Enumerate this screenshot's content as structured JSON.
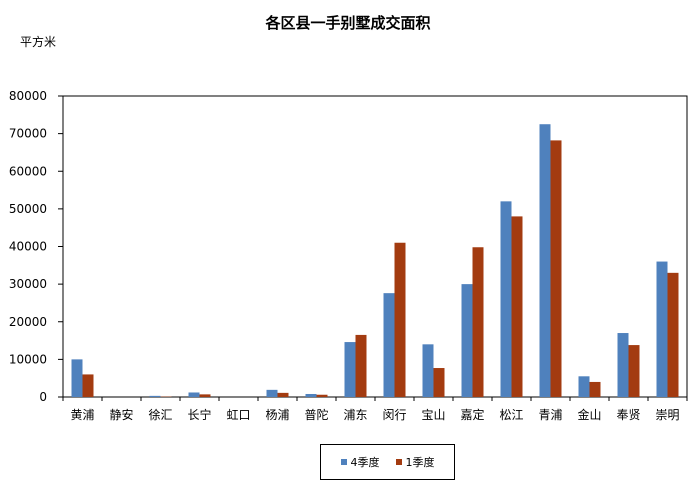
{
  "chart_data": {
    "type": "bar",
    "title": "各区县一手别墅成交面积",
    "ylabel": "平方米",
    "xlabel": "",
    "ylim": [
      0,
      80000
    ],
    "yticks": [
      0,
      10000,
      20000,
      30000,
      40000,
      50000,
      60000,
      70000,
      80000
    ],
    "grid": false,
    "legend_position": "bottom",
    "categories": [
      "黄浦",
      "静安",
      "徐汇",
      "长宁",
      "虹口",
      "杨浦",
      "普陀",
      "浦东",
      "闵行",
      "宝山",
      "嘉定",
      "松江",
      "青浦",
      "金山",
      "奉贤",
      "崇明"
    ],
    "series": [
      {
        "name": "4季度",
        "color": "#4F81BD",
        "values": [
          10000,
          0,
          300,
          1200,
          0,
          1900,
          800,
          14600,
          27600,
          14000,
          30000,
          52000,
          72500,
          5500,
          17000,
          36000
        ]
      },
      {
        "name": "1季度",
        "color": "#A33B10",
        "values": [
          6000,
          0,
          100,
          700,
          0,
          1100,
          600,
          16500,
          41000,
          7700,
          39800,
          48000,
          68200,
          4000,
          13800,
          33000
        ]
      }
    ]
  }
}
